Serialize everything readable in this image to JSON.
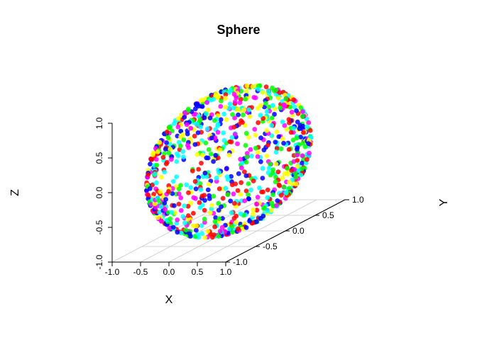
{
  "chart_data": {
    "type": "scatter",
    "subtype": "scatter3d",
    "title": "Sphere",
    "xlabel": "X",
    "ylabel": "Y",
    "zlabel": "Z",
    "xlim": [
      -1.0,
      1.0
    ],
    "ylim": [
      -1.0,
      1.0
    ],
    "zlim": [
      -1.0,
      1.0
    ],
    "x_ticks": [
      "-1.0",
      "-0.5",
      "0.0",
      "0.5",
      "1.0"
    ],
    "y_ticks": [
      "-1.0",
      "-0.5",
      "0.0",
      "0.5",
      "1.0"
    ],
    "z_ticks": [
      "-1.0",
      "-0.5",
      "0.0",
      "0.5",
      "1.0"
    ],
    "grid": true,
    "point_count": 1000,
    "color_scheme": [
      "#ff0000",
      "#ffff00",
      "#00ff00",
      "#00ffff",
      "#0000ff",
      "#ff00ff"
    ],
    "sample_seed": 7
  }
}
